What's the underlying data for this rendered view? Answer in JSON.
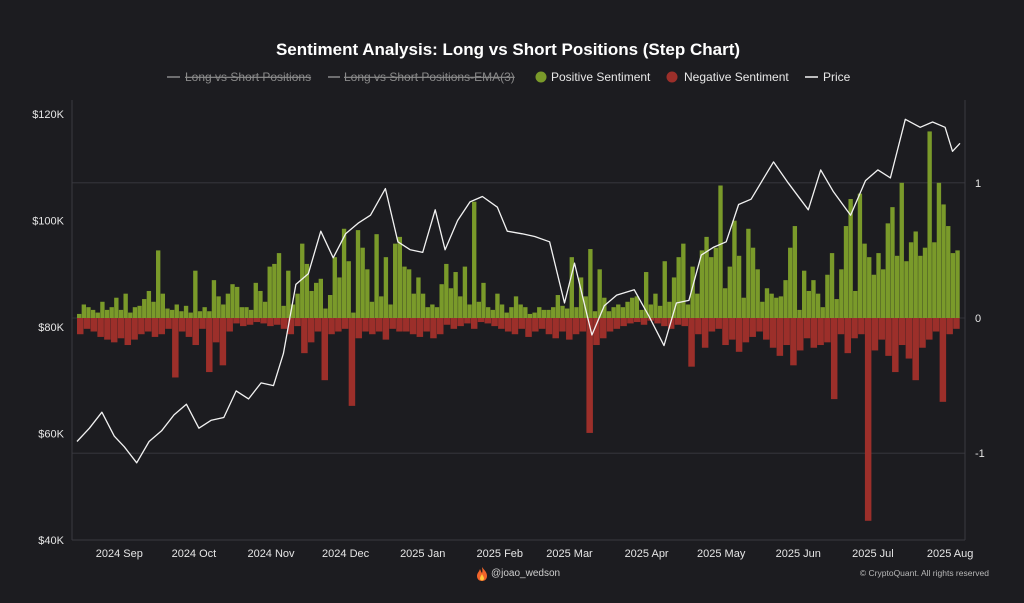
{
  "colors": {
    "background": "#1c1c20",
    "positive": "#7a9a2a",
    "negative": "#9c2f2a",
    "price": "#f2f2f2",
    "grid": "#3a3a40",
    "legend_off": "#8a8a8a"
  },
  "footer": {
    "author_icon": "fire-icon",
    "author": "@joao_wedson",
    "credit": "© CryptoQuant. All rights reserved"
  },
  "chart_data": {
    "type": "bar",
    "title": "Sentiment Analysis: Long vs Short Positions (Step Chart)",
    "legend": [
      {
        "label": "Long vs Short Positions",
        "marker": "line",
        "hidden": true
      },
      {
        "label": "Long vs Short Positions-EMA(3)",
        "marker": "line",
        "hidden": true
      },
      {
        "label": "Positive Sentiment",
        "marker": "dot",
        "color": "#7a9a2a"
      },
      {
        "label": "Negative Sentiment",
        "marker": "dot",
        "color": "#9c2f2a"
      },
      {
        "label": "Price",
        "marker": "line",
        "color": "#f2f2f2"
      }
    ],
    "legend_position": "top-center",
    "x_ticks": [
      "2024 Sep",
      "2024 Oct",
      "2024 Nov",
      "2024 Dec",
      "2025 Jan",
      "2025 Feb",
      "2025 Mar",
      "2025 Apr",
      "2025 May",
      "2025 Jun",
      "2025 Jul",
      "2025 Aug"
    ],
    "y_left_ticks": [
      "$40K",
      "$60K",
      "$80K",
      "$100K",
      "$120K"
    ],
    "y_left_range": [
      40000,
      120000
    ],
    "y_right_ticks": [
      "-1",
      "0",
      "1"
    ],
    "y_right_range": [
      -1.6,
      1.6
    ],
    "grid": true,
    "date_range": [
      "2024-08-15",
      "2025-08-05"
    ],
    "series": [
      {
        "name": "Price",
        "axis": "left",
        "points": [
          [
            "2024-08-15",
            58500
          ],
          [
            "2024-08-20",
            61000
          ],
          [
            "2024-08-25",
            64000
          ],
          [
            "2024-08-30",
            59500
          ],
          [
            "2024-09-03",
            57500
          ],
          [
            "2024-09-08",
            54500
          ],
          [
            "2024-09-13",
            58500
          ],
          [
            "2024-09-18",
            60500
          ],
          [
            "2024-09-23",
            63500
          ],
          [
            "2024-09-28",
            65500
          ],
          [
            "2024-10-03",
            61000
          ],
          [
            "2024-10-08",
            62500
          ],
          [
            "2024-10-13",
            63000
          ],
          [
            "2024-10-18",
            68000
          ],
          [
            "2024-10-23",
            66500
          ],
          [
            "2024-10-28",
            69500
          ],
          [
            "2024-11-02",
            69000
          ],
          [
            "2024-11-06",
            75000
          ],
          [
            "2024-11-11",
            88000
          ],
          [
            "2024-11-16",
            90000
          ],
          [
            "2024-11-21",
            98000
          ],
          [
            "2024-11-26",
            93000
          ],
          [
            "2024-12-01",
            97500
          ],
          [
            "2024-12-06",
            99500
          ],
          [
            "2024-12-11",
            101000
          ],
          [
            "2024-12-17",
            106000
          ],
          [
            "2024-12-22",
            96000
          ],
          [
            "2024-12-27",
            94500
          ],
          [
            "2025-01-01",
            94000
          ],
          [
            "2025-01-06",
            102000
          ],
          [
            "2025-01-10",
            94500
          ],
          [
            "2025-01-15",
            100000
          ],
          [
            "2025-01-20",
            103500
          ],
          [
            "2025-01-25",
            104500
          ],
          [
            "2025-01-31",
            102500
          ],
          [
            "2025-02-04",
            98000
          ],
          [
            "2025-02-10",
            97500
          ],
          [
            "2025-02-15",
            97000
          ],
          [
            "2025-02-21",
            96000
          ],
          [
            "2025-02-27",
            84500
          ],
          [
            "2025-03-03",
            92000
          ],
          [
            "2025-03-10",
            78500
          ],
          [
            "2025-03-15",
            84000
          ],
          [
            "2025-03-20",
            86000
          ],
          [
            "2025-03-27",
            87000
          ],
          [
            "2025-04-02",
            82000
          ],
          [
            "2025-04-08",
            76500
          ],
          [
            "2025-04-13",
            84500
          ],
          [
            "2025-04-18",
            85000
          ],
          [
            "2025-04-23",
            93500
          ],
          [
            "2025-04-28",
            95000
          ],
          [
            "2025-05-03",
            96000
          ],
          [
            "2025-05-08",
            103000
          ],
          [
            "2025-05-13",
            104000
          ],
          [
            "2025-05-22",
            111000
          ],
          [
            "2025-05-28",
            107000
          ],
          [
            "2025-06-05",
            102000
          ],
          [
            "2025-06-10",
            109500
          ],
          [
            "2025-06-15",
            105500
          ],
          [
            "2025-06-22",
            101000
          ],
          [
            "2025-06-28",
            107500
          ],
          [
            "2025-07-03",
            109500
          ],
          [
            "2025-07-08",
            108000
          ],
          [
            "2025-07-14",
            119000
          ],
          [
            "2025-07-20",
            117500
          ],
          [
            "2025-07-25",
            118500
          ],
          [
            "2025-07-30",
            117500
          ],
          [
            "2025-08-02",
            113000
          ],
          [
            "2025-08-05",
            114500
          ]
        ]
      },
      {
        "name": "Sentiment",
        "axis": "right",
        "weekly_start": "2024-08-15",
        "positive_values": [
          0.03,
          0.1,
          0.08,
          0.06,
          0.04,
          0.12,
          0.06,
          0.08,
          0.15,
          0.06,
          0.18,
          0.04,
          0.08,
          0.09,
          0.14,
          0.2,
          0.12,
          0.5,
          0.18,
          0.07,
          0.06,
          0.1,
          0.05,
          0.09,
          0.04,
          0.35,
          0.05,
          0.08,
          0.05,
          0.28,
          0.16,
          0.1,
          0.18,
          0.25,
          0.23,
          0.08,
          0.08,
          0.06,
          0.26,
          0.2,
          0.12,
          0.38,
          0.4,
          0.48,
          0.09,
          0.35,
          0.1,
          0.18,
          0.55,
          0.4,
          0.2,
          0.26,
          0.29,
          0.07,
          0.17,
          0.45,
          0.3,
          0.66,
          0.42,
          0.04,
          0.65,
          0.52,
          0.36,
          0.12,
          0.62,
          0.16,
          0.45,
          0.1,
          0.55,
          0.6,
          0.38,
          0.36,
          0.18,
          0.3,
          0.18,
          0.08,
          0.1,
          0.08,
          0.25,
          0.4,
          0.22,
          0.34,
          0.16,
          0.38,
          0.1,
          0.86,
          0.12,
          0.26,
          0.08,
          0.06,
          0.18,
          0.1,
          0.04,
          0.08,
          0.16,
          0.1,
          0.08,
          0.03,
          0.04,
          0.08,
          0.06,
          0.06,
          0.08,
          0.17,
          0.09,
          0.07,
          0.45,
          0.08,
          0.3,
          0.16,
          0.51,
          0.05,
          0.36,
          0.15,
          0.05,
          0.08,
          0.1,
          0.08,
          0.12,
          0.15,
          0.16,
          0.06,
          0.34,
          0.1,
          0.18,
          0.09,
          0.42,
          0.12,
          0.3,
          0.45,
          0.55,
          0.1,
          0.38,
          0.18,
          0.5,
          0.6,
          0.45,
          0.52,
          0.98,
          0.22,
          0.38,
          0.72,
          0.46,
          0.15,
          0.66,
          0.52,
          0.36,
          0.12,
          0.22,
          0.18,
          0.15,
          0.16,
          0.28,
          0.52,
          0.68,
          0.06,
          0.35,
          0.2,
          0.28,
          0.18,
          0.08,
          0.32,
          0.48,
          0.14,
          0.36,
          0.68,
          0.88,
          0.2,
          0.92,
          0.55,
          0.45,
          0.32,
          0.48,
          0.36,
          0.7,
          0.82,
          0.46,
          1.0,
          0.42,
          0.56,
          0.64,
          0.46,
          0.52,
          1.38,
          0.56,
          1.0,
          0.84,
          0.68,
          0.48,
          0.5
        ],
        "negative_values": [
          -0.12,
          -0.08,
          -0.1,
          -0.14,
          -0.16,
          -0.18,
          -0.15,
          -0.2,
          -0.16,
          -0.12,
          -0.1,
          -0.14,
          -0.12,
          -0.08,
          -0.44,
          -0.1,
          -0.14,
          -0.2,
          -0.08,
          -0.4,
          -0.18,
          -0.35,
          -0.1,
          -0.04,
          -0.06,
          -0.05,
          -0.03,
          -0.04,
          -0.06,
          -0.05,
          -0.08,
          -0.12,
          -0.06,
          -0.26,
          -0.18,
          -0.1,
          -0.46,
          -0.12,
          -0.1,
          -0.08,
          -0.65,
          -0.15,
          -0.1,
          -0.12,
          -0.1,
          -0.16,
          -0.08,
          -0.1,
          -0.1,
          -0.12,
          -0.14,
          -0.1,
          -0.15,
          -0.12,
          -0.05,
          -0.08,
          -0.06,
          -0.04,
          -0.08,
          -0.03,
          -0.04,
          -0.06,
          -0.08,
          -0.1,
          -0.12,
          -0.08,
          -0.14,
          -0.1,
          -0.08,
          -0.12,
          -0.15,
          -0.1,
          -0.16,
          -0.12,
          -0.1,
          -0.85,
          -0.2,
          -0.15,
          -0.1,
          -0.08,
          -0.06,
          -0.04,
          -0.03,
          -0.05,
          -0.02,
          -0.04,
          -0.06,
          -0.08,
          -0.05,
          -0.06,
          -0.36,
          -0.12,
          -0.22,
          -0.1,
          -0.08,
          -0.2,
          -0.16,
          -0.25,
          -0.18,
          -0.14,
          -0.1,
          -0.16,
          -0.22,
          -0.28,
          -0.2,
          -0.35,
          -0.24,
          -0.15,
          -0.22,
          -0.2,
          -0.18,
          -0.6,
          -0.12,
          -0.26,
          -0.15,
          -0.12,
          -1.5,
          -0.24,
          -0.16,
          -0.28,
          -0.4,
          -0.2,
          -0.3,
          -0.46,
          -0.22,
          -0.16,
          -0.1,
          -0.62,
          -0.12,
          -0.08
        ]
      }
    ]
  }
}
